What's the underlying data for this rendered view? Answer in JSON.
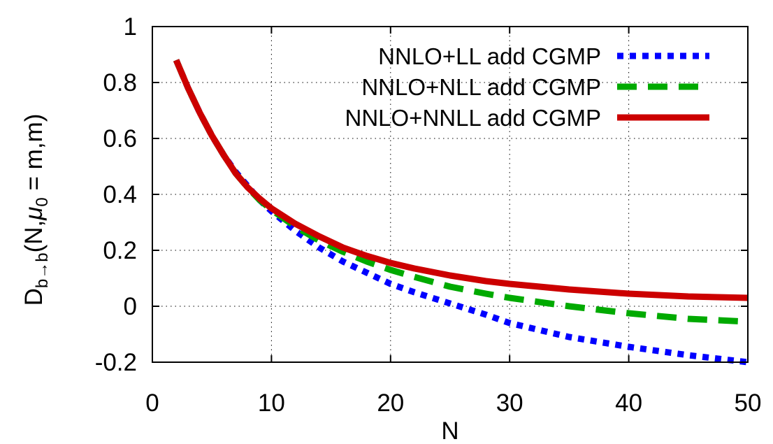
{
  "chart_data": {
    "type": "line",
    "xlabel": "N",
    "ylabel": {
      "main": "D",
      "main_sub": "b→b",
      "args_open": "(N,",
      "mu": "μ",
      "mu_sub": "0",
      "args_close": " = m,m)"
    },
    "xlim": [
      0,
      50
    ],
    "ylim": [
      -0.2,
      1.0
    ],
    "xticks": [
      0,
      10,
      20,
      30,
      40,
      50
    ],
    "xtick_labels": [
      "0",
      "10",
      "20",
      "30",
      "40",
      "50"
    ],
    "yticks": [
      -0.2,
      0,
      0.2,
      0.4,
      0.6,
      0.8,
      1.0
    ],
    "ytick_labels": [
      "-0.2",
      "0",
      "0.2",
      "0.4",
      "0.6",
      "0.8",
      "1"
    ],
    "grid": true,
    "legend_position": "top-right",
    "series": [
      {
        "name": "NNLO+LL add CGMP",
        "color": "#0000ff",
        "style": "dotted",
        "x": [
          2,
          3,
          4,
          5,
          6,
          7,
          8,
          9,
          10,
          12,
          14,
          16,
          18,
          20,
          22,
          25,
          28,
          30,
          35,
          40,
          45,
          50
        ],
        "y": [
          0.88,
          0.78,
          0.69,
          0.61,
          0.54,
          0.48,
          0.43,
          0.38,
          0.34,
          0.27,
          0.21,
          0.16,
          0.12,
          0.08,
          0.05,
          0.01,
          -0.03,
          -0.06,
          -0.11,
          -0.145,
          -0.175,
          -0.2
        ]
      },
      {
        "name": "NNLO+NLL add CGMP",
        "color": "#00aa00",
        "style": "dashed",
        "x": [
          2,
          3,
          4,
          5,
          6,
          7,
          8,
          9,
          10,
          12,
          14,
          16,
          18,
          20,
          22,
          25,
          28,
          30,
          35,
          40,
          45,
          50
        ],
        "y": [
          0.88,
          0.78,
          0.69,
          0.61,
          0.54,
          0.475,
          0.425,
          0.38,
          0.345,
          0.285,
          0.235,
          0.195,
          0.16,
          0.13,
          0.105,
          0.07,
          0.045,
          0.03,
          0.0,
          -0.025,
          -0.045,
          -0.055
        ]
      },
      {
        "name": "NNLO+NNLL add CGMP",
        "color": "#cc0000",
        "style": "solid",
        "x": [
          2,
          3,
          4,
          5,
          6,
          7,
          8,
          9,
          10,
          12,
          14,
          16,
          18,
          20,
          22,
          25,
          28,
          30,
          35,
          40,
          45,
          50
        ],
        "y": [
          0.88,
          0.78,
          0.69,
          0.61,
          0.54,
          0.475,
          0.425,
          0.385,
          0.35,
          0.295,
          0.25,
          0.21,
          0.18,
          0.155,
          0.135,
          0.11,
          0.09,
          0.08,
          0.06,
          0.045,
          0.035,
          0.03
        ]
      }
    ]
  }
}
